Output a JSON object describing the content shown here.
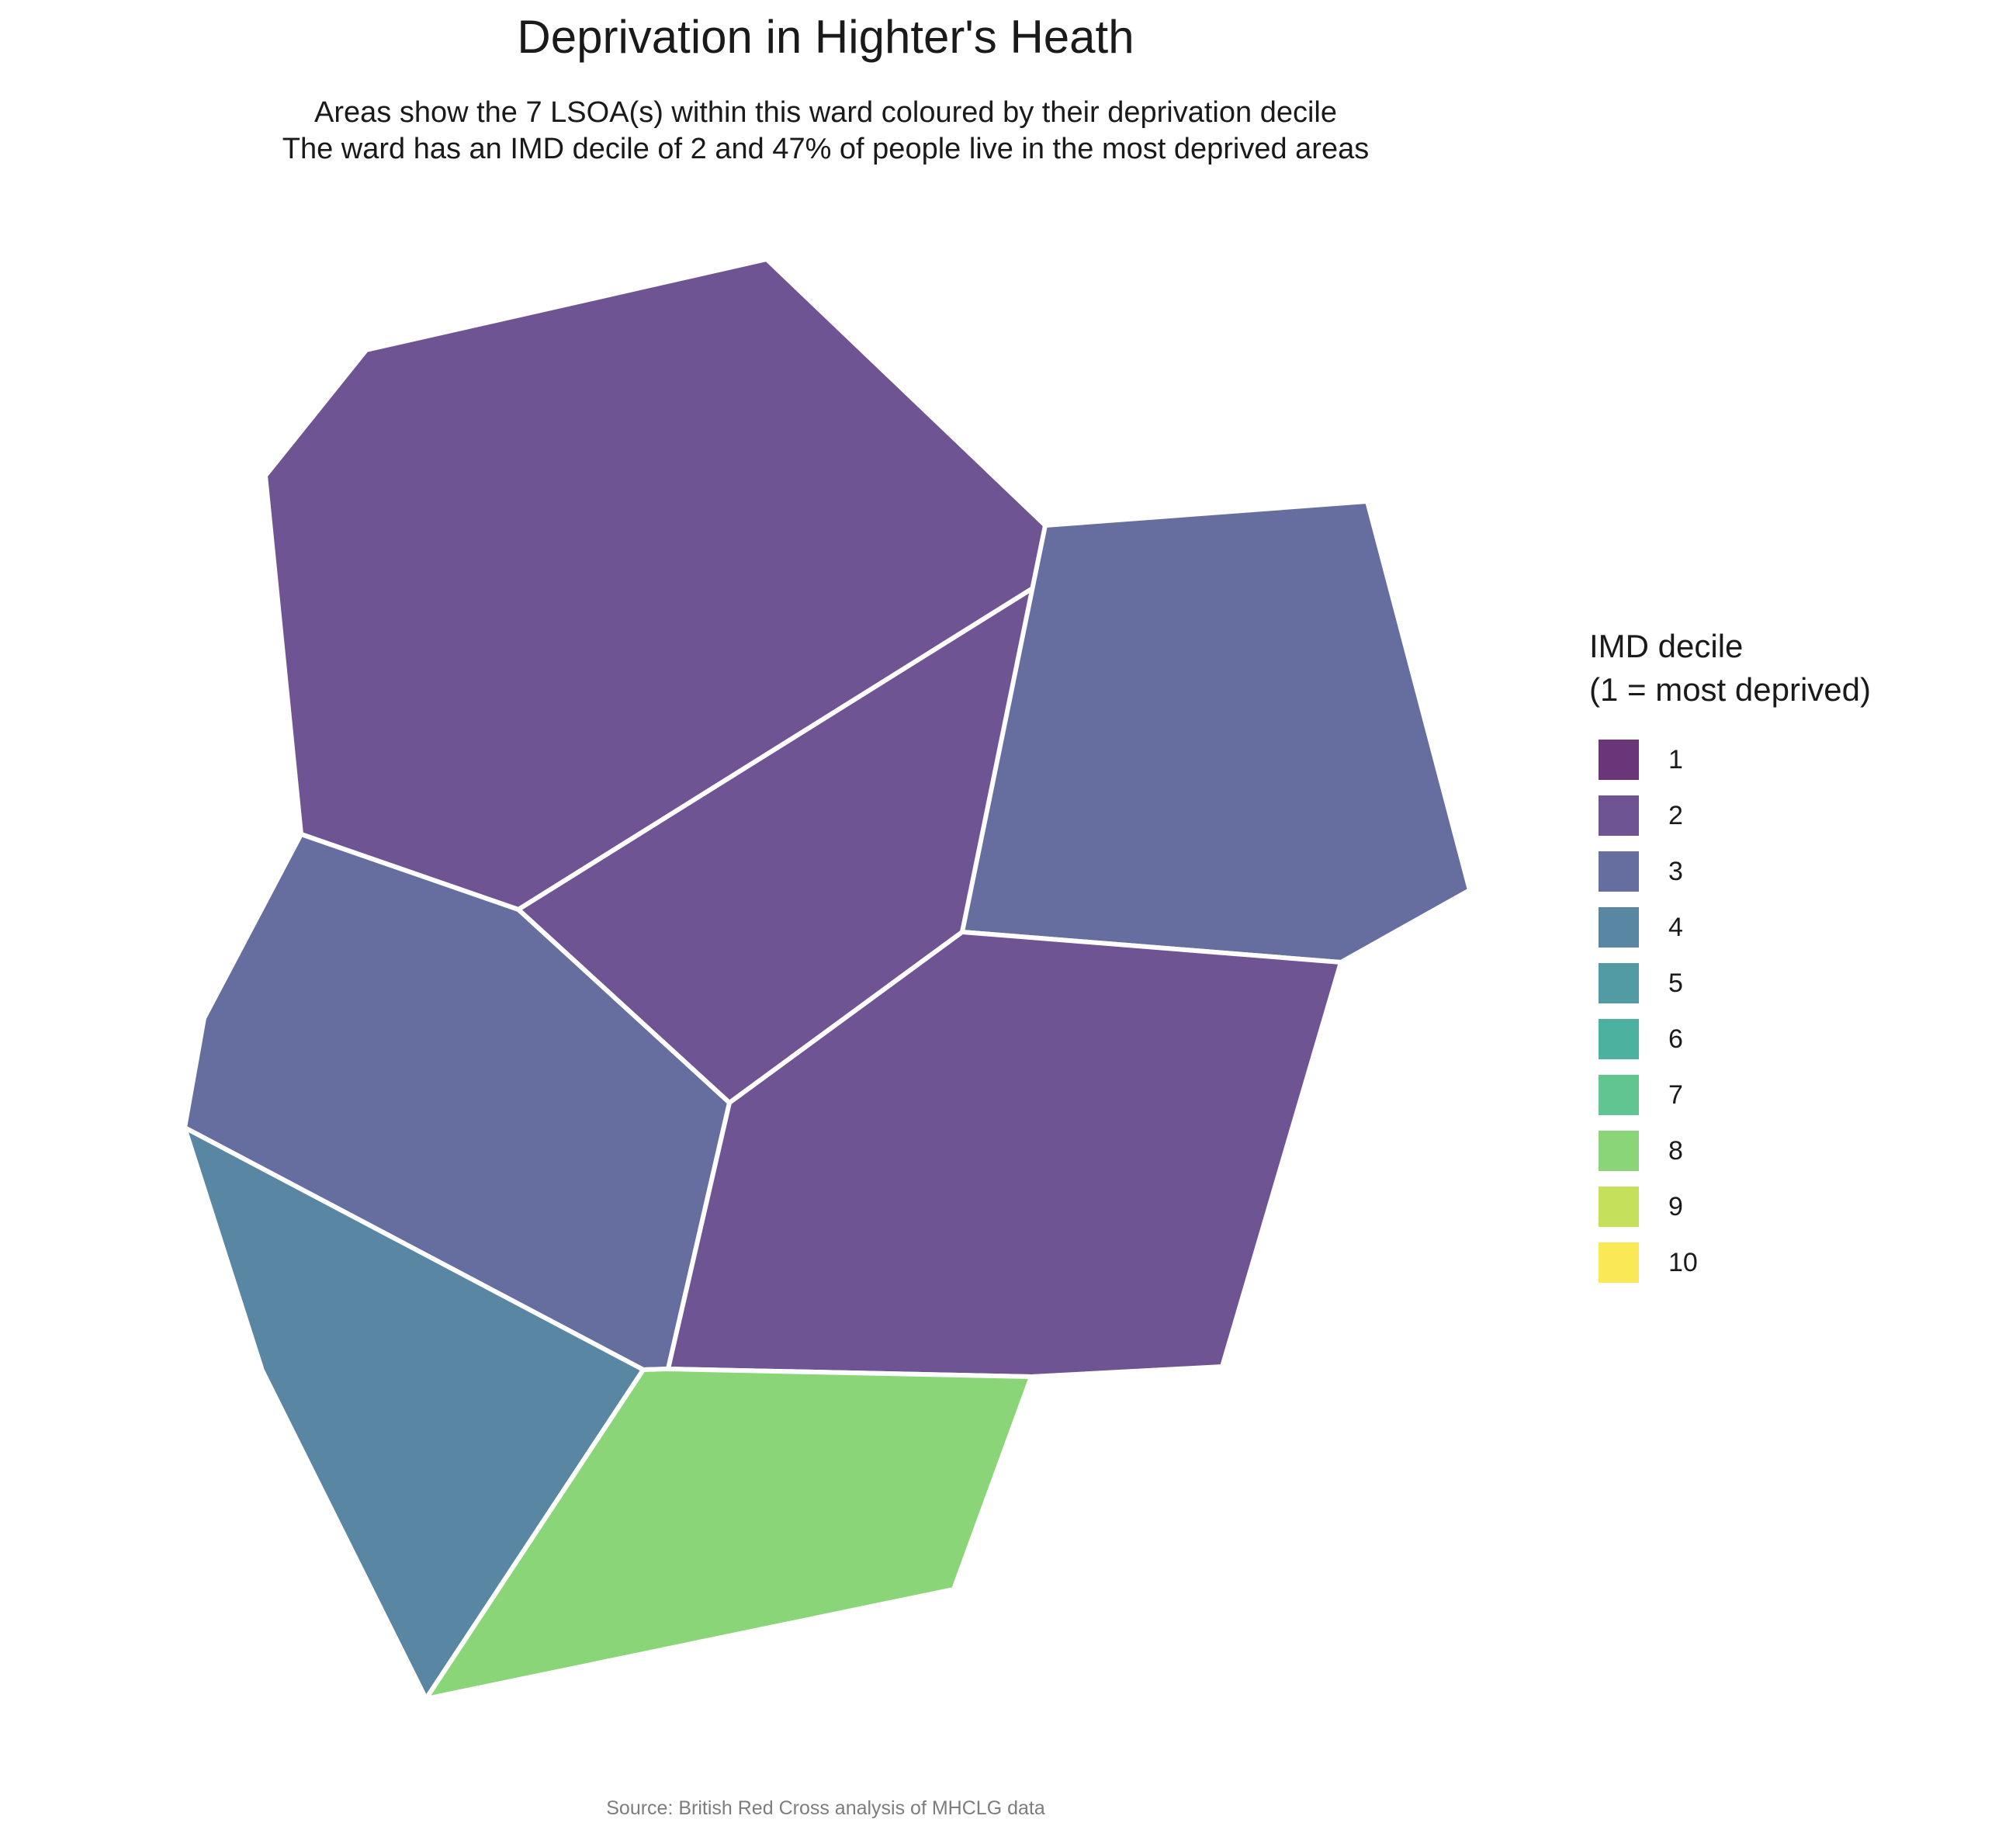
{
  "title": "Deprivation in Highter's Heath",
  "subtitle": {
    "line1": "Areas show the 7 LSOA(s) within this ward coloured by their deprivation decile",
    "line2": "The ward has an IMD decile of 2 and 47% of people live in the most deprived areas"
  },
  "legend": {
    "title_line1": "IMD decile",
    "title_line2": "(1 = most deprived)",
    "items": [
      {
        "label": "1",
        "color": "#6a3579"
      },
      {
        "label": "2",
        "color": "#6e5493"
      },
      {
        "label": "3",
        "color": "#656e9f"
      },
      {
        "label": "4",
        "color": "#5986a3"
      },
      {
        "label": "5",
        "color": "#529ba4"
      },
      {
        "label": "6",
        "color": "#4cb19f"
      },
      {
        "label": "7",
        "color": "#61c592"
      },
      {
        "label": "8",
        "color": "#8bd579"
      },
      {
        "label": "9",
        "color": "#c5e05b"
      },
      {
        "label": "10",
        "color": "#fae855"
      }
    ]
  },
  "areas": [
    {
      "id": "north",
      "decile": 2
    },
    {
      "id": "centre",
      "decile": 2
    },
    {
      "id": "east",
      "decile": 3
    },
    {
      "id": "west",
      "decile": 3
    },
    {
      "id": "south-east",
      "decile": 2
    },
    {
      "id": "south-west",
      "decile": 4
    },
    {
      "id": "south",
      "decile": 8
    }
  ],
  "source": "Source: British Red Cross analysis of MHCLG data"
}
